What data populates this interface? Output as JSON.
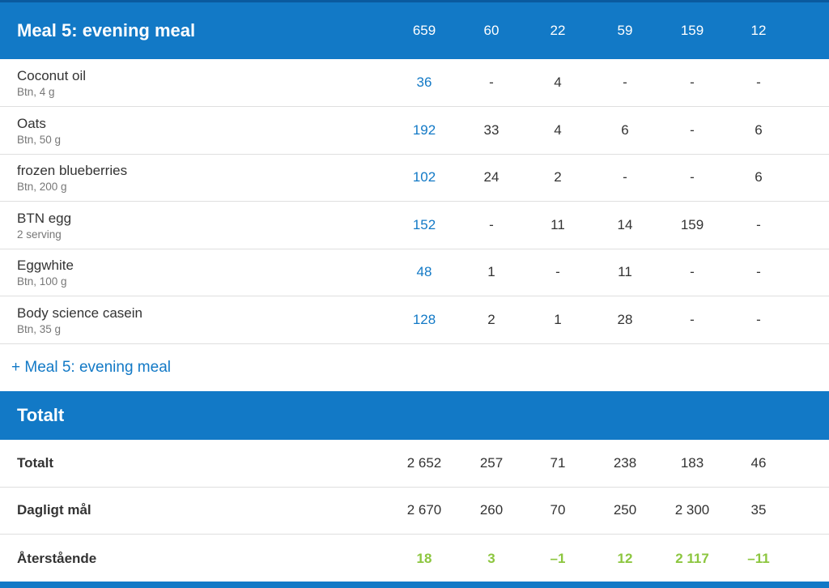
{
  "meal_header": {
    "title": "Meal 5: evening meal",
    "values": [
      "659",
      "60",
      "22",
      "59",
      "159",
      "12"
    ]
  },
  "foods": [
    {
      "name": "Coconut oil",
      "sub": "Btn, 4 g",
      "values": [
        "36",
        "-",
        "4",
        "-",
        "-",
        "-"
      ]
    },
    {
      "name": "Oats",
      "sub": "Btn, 50 g",
      "values": [
        "192",
        "33",
        "4",
        "6",
        "-",
        "6"
      ]
    },
    {
      "name": "frozen blueberries",
      "sub": "Btn, 200 g",
      "values": [
        "102",
        "24",
        "2",
        "-",
        "-",
        "6"
      ]
    },
    {
      "name": "BTN egg",
      "sub": "2 serving",
      "values": [
        "152",
        "-",
        "11",
        "14",
        "159",
        "-"
      ]
    },
    {
      "name": "Eggwhite",
      "sub": "Btn, 100 g",
      "values": [
        "48",
        "1",
        "-",
        "11",
        "-",
        "-"
      ]
    },
    {
      "name": "Body science casein",
      "sub": "Btn, 35 g",
      "values": [
        "128",
        "2",
        "1",
        "28",
        "-",
        "-"
      ]
    }
  ],
  "add_link": "+ Meal 5: evening meal",
  "total_header": {
    "title": "Totalt"
  },
  "totals": [
    {
      "label": "Totalt",
      "values": [
        "2 652",
        "257",
        "71",
        "238",
        "183",
        "46"
      ]
    },
    {
      "label": "Dagligt mål",
      "values": [
        "2 670",
        "260",
        "70",
        "250",
        "2 300",
        "35"
      ]
    },
    {
      "label": "Återstående",
      "values": [
        "18",
        "3",
        "–1",
        "12",
        "2 117",
        "–11"
      ]
    }
  ],
  "colors": {
    "header_blue": "#1279c6",
    "link_blue": "#1279c6",
    "remaining_green": "#8cc63f"
  }
}
